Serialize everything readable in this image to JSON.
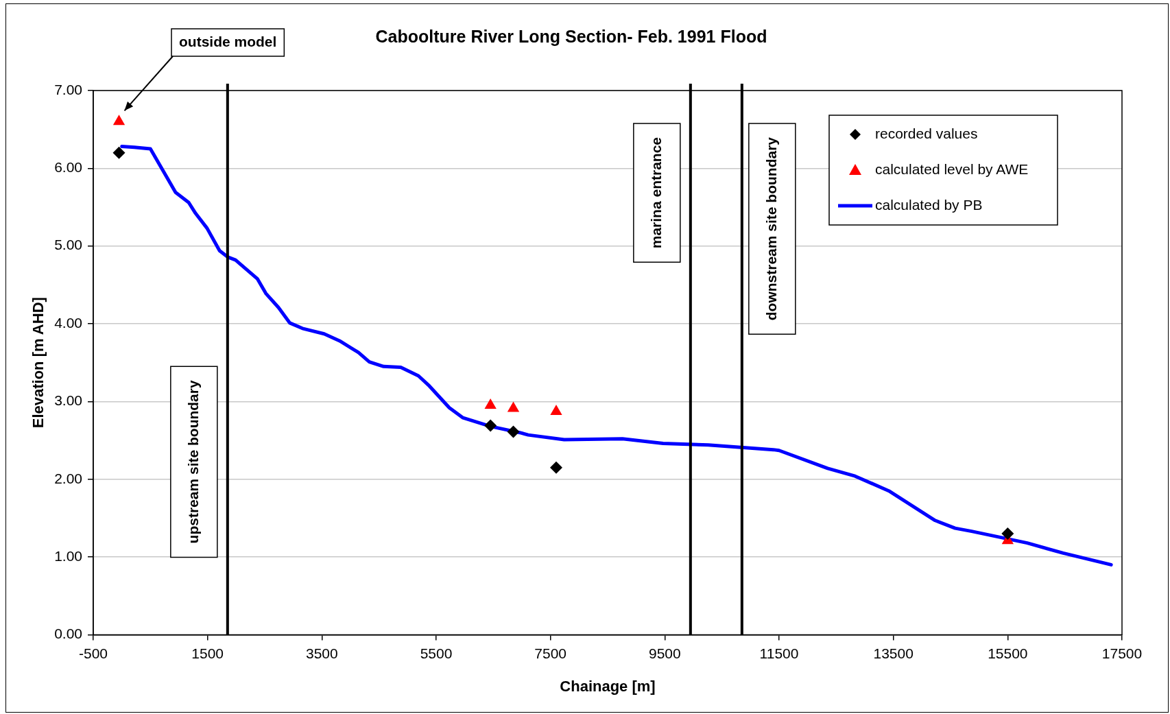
{
  "chart_data": {
    "type": "line",
    "title": "Caboolture River Long Section- Feb. 1991 Flood",
    "xlabel": "Chainage [m]",
    "ylabel": "Elevation [m AHD]",
    "xlim": [
      -500,
      17500
    ],
    "xticks": [
      -500,
      1500,
      3500,
      5500,
      7500,
      9500,
      11500,
      13500,
      15500,
      17500
    ],
    "ylim": [
      0,
      7
    ],
    "yticks": [
      {
        "value": 0,
        "label": "0.00"
      },
      {
        "value": 1,
        "label": "1.00"
      },
      {
        "value": 2,
        "label": "2.00"
      },
      {
        "value": 3,
        "label": "3.00"
      },
      {
        "value": 4,
        "label": "4.00"
      },
      {
        "value": 5,
        "label": "5.00"
      },
      {
        "value": 6,
        "label": "6.00"
      },
      {
        "value": 7,
        "label": "7.00"
      }
    ],
    "grid": "y",
    "legend": "top right",
    "series": [
      {
        "name": "recorded values",
        "type": "scatter",
        "marker": "diamond",
        "color": "#000000",
        "x": [
          -50,
          6450,
          6850,
          7600,
          15500
        ],
        "values": [
          6.2,
          2.69,
          2.61,
          2.15,
          1.3
        ]
      },
      {
        "name": "calculated level by AWE",
        "type": "scatter",
        "marker": "triangle",
        "color": "#ff0000",
        "x": [
          -50,
          6450,
          6850,
          7600,
          15500
        ],
        "values": [
          6.6,
          2.95,
          2.91,
          2.87,
          1.21
        ]
      },
      {
        "name": "calculated by PB",
        "marker": "none",
        "color": "#0000ff",
        "x": [
          0,
          220,
          500,
          940,
          1170,
          1290,
          1490,
          1710,
          1850,
          1990,
          2370,
          2520,
          2740,
          2940,
          3160,
          3540,
          3810,
          4140,
          4330,
          4580,
          4880,
          5190,
          5380,
          5730,
          5970,
          6450,
          6960,
          7110,
          7740,
          8760,
          9470,
          10260,
          11400,
          11500,
          12350,
          12830,
          13420,
          14230,
          14580,
          14870,
          15840,
          16470,
          17310
        ],
        "values": [
          6.28,
          6.27,
          6.25,
          5.69,
          5.56,
          5.42,
          5.23,
          4.94,
          4.86,
          4.82,
          4.58,
          4.39,
          4.21,
          4.01,
          3.94,
          3.87,
          3.78,
          3.63,
          3.51,
          3.45,
          3.44,
          3.33,
          3.2,
          2.92,
          2.79,
          2.68,
          2.6,
          2.57,
          2.51,
          2.52,
          2.46,
          2.44,
          2.38,
          2.37,
          2.14,
          2.04,
          1.85,
          1.47,
          1.37,
          1.33,
          1.18,
          1.05,
          0.9
        ]
      }
    ],
    "ref_lines": [
      {
        "axis": "x",
        "value": 1850,
        "label": "upstream site boundary",
        "color": "#000000"
      },
      {
        "axis": "x",
        "value": 9950,
        "label": "marina entrance",
        "color": "#000000"
      },
      {
        "axis": "x",
        "value": 10850,
        "label": "downstream site boundary",
        "color": "#000000"
      }
    ],
    "annotations": [
      "outside model"
    ]
  }
}
